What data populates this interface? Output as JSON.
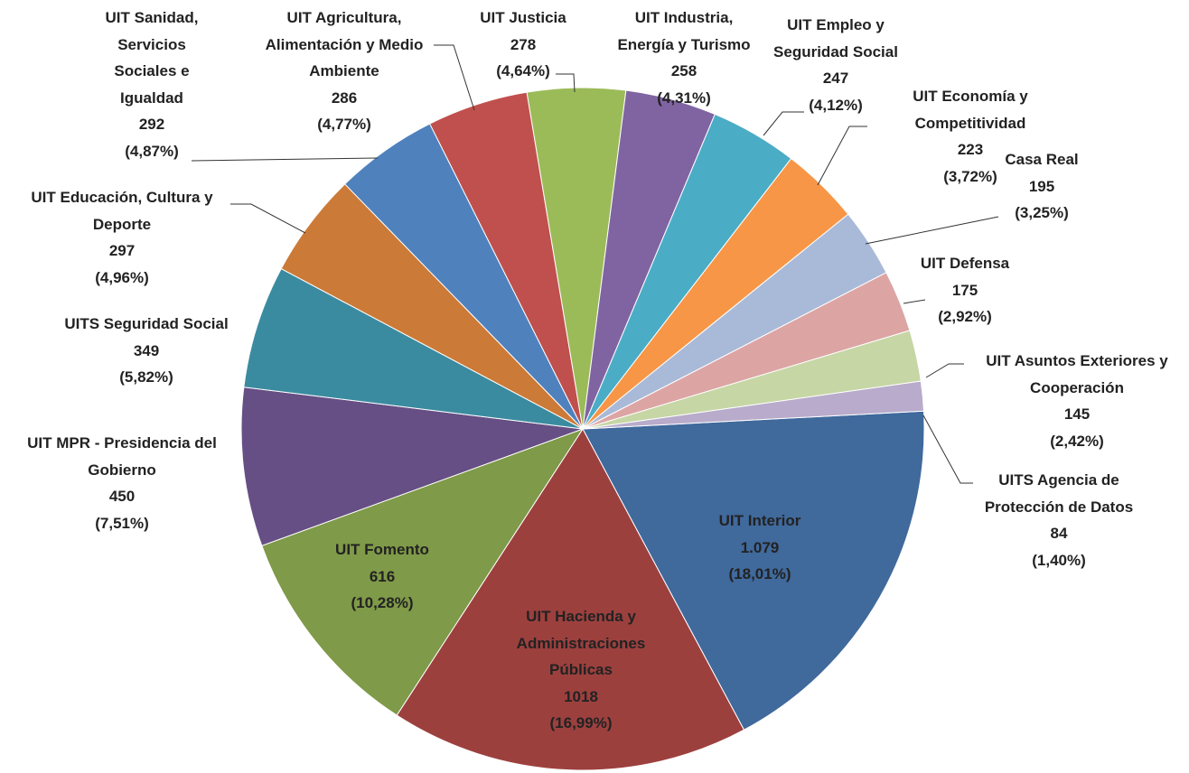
{
  "chart_data": {
    "type": "pie",
    "categories": [
      "UIT Interior",
      "UIT Hacienda y Administraciones Públicas",
      "UIT Fomento",
      "UIT MPR - Presidencia del Gobierno",
      "UITS Seguridad Social",
      "UIT Educación, Cultura y Deporte",
      "UIT Sanidad, Servicios Sociales e Igualdad",
      "UIT Agricultura, Alimentación y Medio Ambiente",
      "UIT Justicia",
      "UIT Industria, Energía y Turismo",
      "UIT Empleo y Seguridad Social",
      "UIT Economía y Competitividad",
      "Casa Real",
      "UIT Defensa",
      "UIT Asuntos Exteriores y Cooperación",
      "UITS Agencia de Protección de Datos"
    ],
    "values": [
      1079,
      1018,
      616,
      450,
      349,
      297,
      292,
      286,
      278,
      258,
      247,
      223,
      195,
      175,
      145,
      84
    ],
    "value_labels": [
      "1.079",
      "1018",
      "616",
      "450",
      "349",
      "297",
      "292",
      "286",
      "278",
      "258",
      "247",
      "223",
      "195",
      "175",
      "145",
      "84"
    ],
    "percentages": [
      18.01,
      16.99,
      10.28,
      7.51,
      5.82,
      4.96,
      4.87,
      4.77,
      4.64,
      4.31,
      4.12,
      3.72,
      3.25,
      2.92,
      2.42,
      1.4
    ],
    "percentage_labels": [
      "(18,01%)",
      "(16,99%)",
      "(10,28%)",
      "(7,51%)",
      "(5,82%)",
      "(4,96%)",
      "(4,87%)",
      "(4,77%)",
      "(4,64%)",
      "(4,31%)",
      "(4,12%)",
      "(3,72%)",
      "(3,25%)",
      "(2,92%)",
      "(2,42%)",
      "(1,40%)"
    ],
    "colors": [
      "#40699c",
      "#9c403e",
      "#7f9a48",
      "#664f84",
      "#3b8ba0",
      "#cc7a37",
      "#4f81bd",
      "#c0504d",
      "#9bbb59",
      "#8064a2",
      "#4bacc6",
      "#f79646",
      "#a9b9d8",
      "#dca5a4",
      "#c6d6a5",
      "#b8abcb"
    ]
  }
}
